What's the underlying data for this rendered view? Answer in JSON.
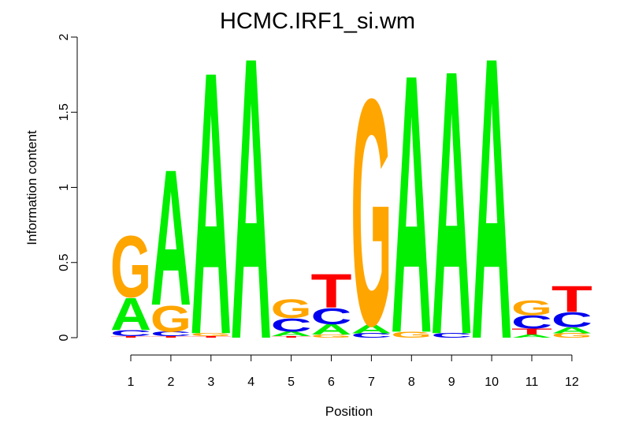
{
  "chart_data": {
    "type": "sequence-logo",
    "title": "HCMC.IRF1_si.wm",
    "xlabel": "Position",
    "ylabel": "Information content",
    "ylim": [
      0,
      2
    ],
    "yticks": [
      "0",
      "0.5",
      "1",
      "1.5",
      "2"
    ],
    "ytick_values": [
      0,
      0.5,
      1,
      1.5,
      2
    ],
    "categories": [
      "1",
      "2",
      "3",
      "4",
      "5",
      "6",
      "7",
      "8",
      "9",
      "10",
      "11",
      "12"
    ],
    "colors": {
      "A": "#00ee00",
      "C": "#0000ee",
      "G": "#ffa500",
      "T": "#ff0000"
    },
    "positions": [
      {
        "position": 1,
        "stack": [
          [
            "T",
            0.01
          ],
          [
            "C",
            0.04
          ],
          [
            "A",
            0.22
          ],
          [
            "G",
            0.42
          ]
        ]
      },
      {
        "position": 2,
        "stack": [
          [
            "T",
            0.01
          ],
          [
            "C",
            0.03
          ],
          [
            "G",
            0.18
          ],
          [
            "A",
            0.93
          ]
        ]
      },
      {
        "position": 3,
        "stack": [
          [
            "T",
            0.01
          ],
          [
            "G",
            0.02
          ],
          [
            "A",
            1.8
          ]
        ]
      },
      {
        "position": 4,
        "stack": [
          [
            "A",
            1.93
          ]
        ]
      },
      {
        "position": 5,
        "stack": [
          [
            "T",
            0.01
          ],
          [
            "A",
            0.03
          ],
          [
            "C",
            0.09
          ],
          [
            "G",
            0.13
          ]
        ]
      },
      {
        "position": 6,
        "stack": [
          [
            "G",
            0.02
          ],
          [
            "A",
            0.07
          ],
          [
            "C",
            0.11
          ],
          [
            "T",
            0.23
          ]
        ]
      },
      {
        "position": 7,
        "stack": [
          [
            "C",
            0.03
          ],
          [
            "A",
            0.06
          ],
          [
            "G",
            1.55
          ]
        ]
      },
      {
        "position": 8,
        "stack": [
          [
            "G",
            0.04
          ],
          [
            "A",
            1.77
          ]
        ]
      },
      {
        "position": 9,
        "stack": [
          [
            "C",
            0.03
          ],
          [
            "A",
            1.81
          ]
        ]
      },
      {
        "position": 10,
        "stack": [
          [
            "A",
            1.93
          ]
        ]
      },
      {
        "position": 11,
        "stack": [
          [
            "A",
            0.02
          ],
          [
            "T",
            0.04
          ],
          [
            "C",
            0.09
          ],
          [
            "G",
            0.1
          ]
        ]
      },
      {
        "position": 12,
        "stack": [
          [
            "G",
            0.03
          ],
          [
            "A",
            0.04
          ],
          [
            "C",
            0.1
          ],
          [
            "T",
            0.18
          ]
        ]
      }
    ]
  }
}
